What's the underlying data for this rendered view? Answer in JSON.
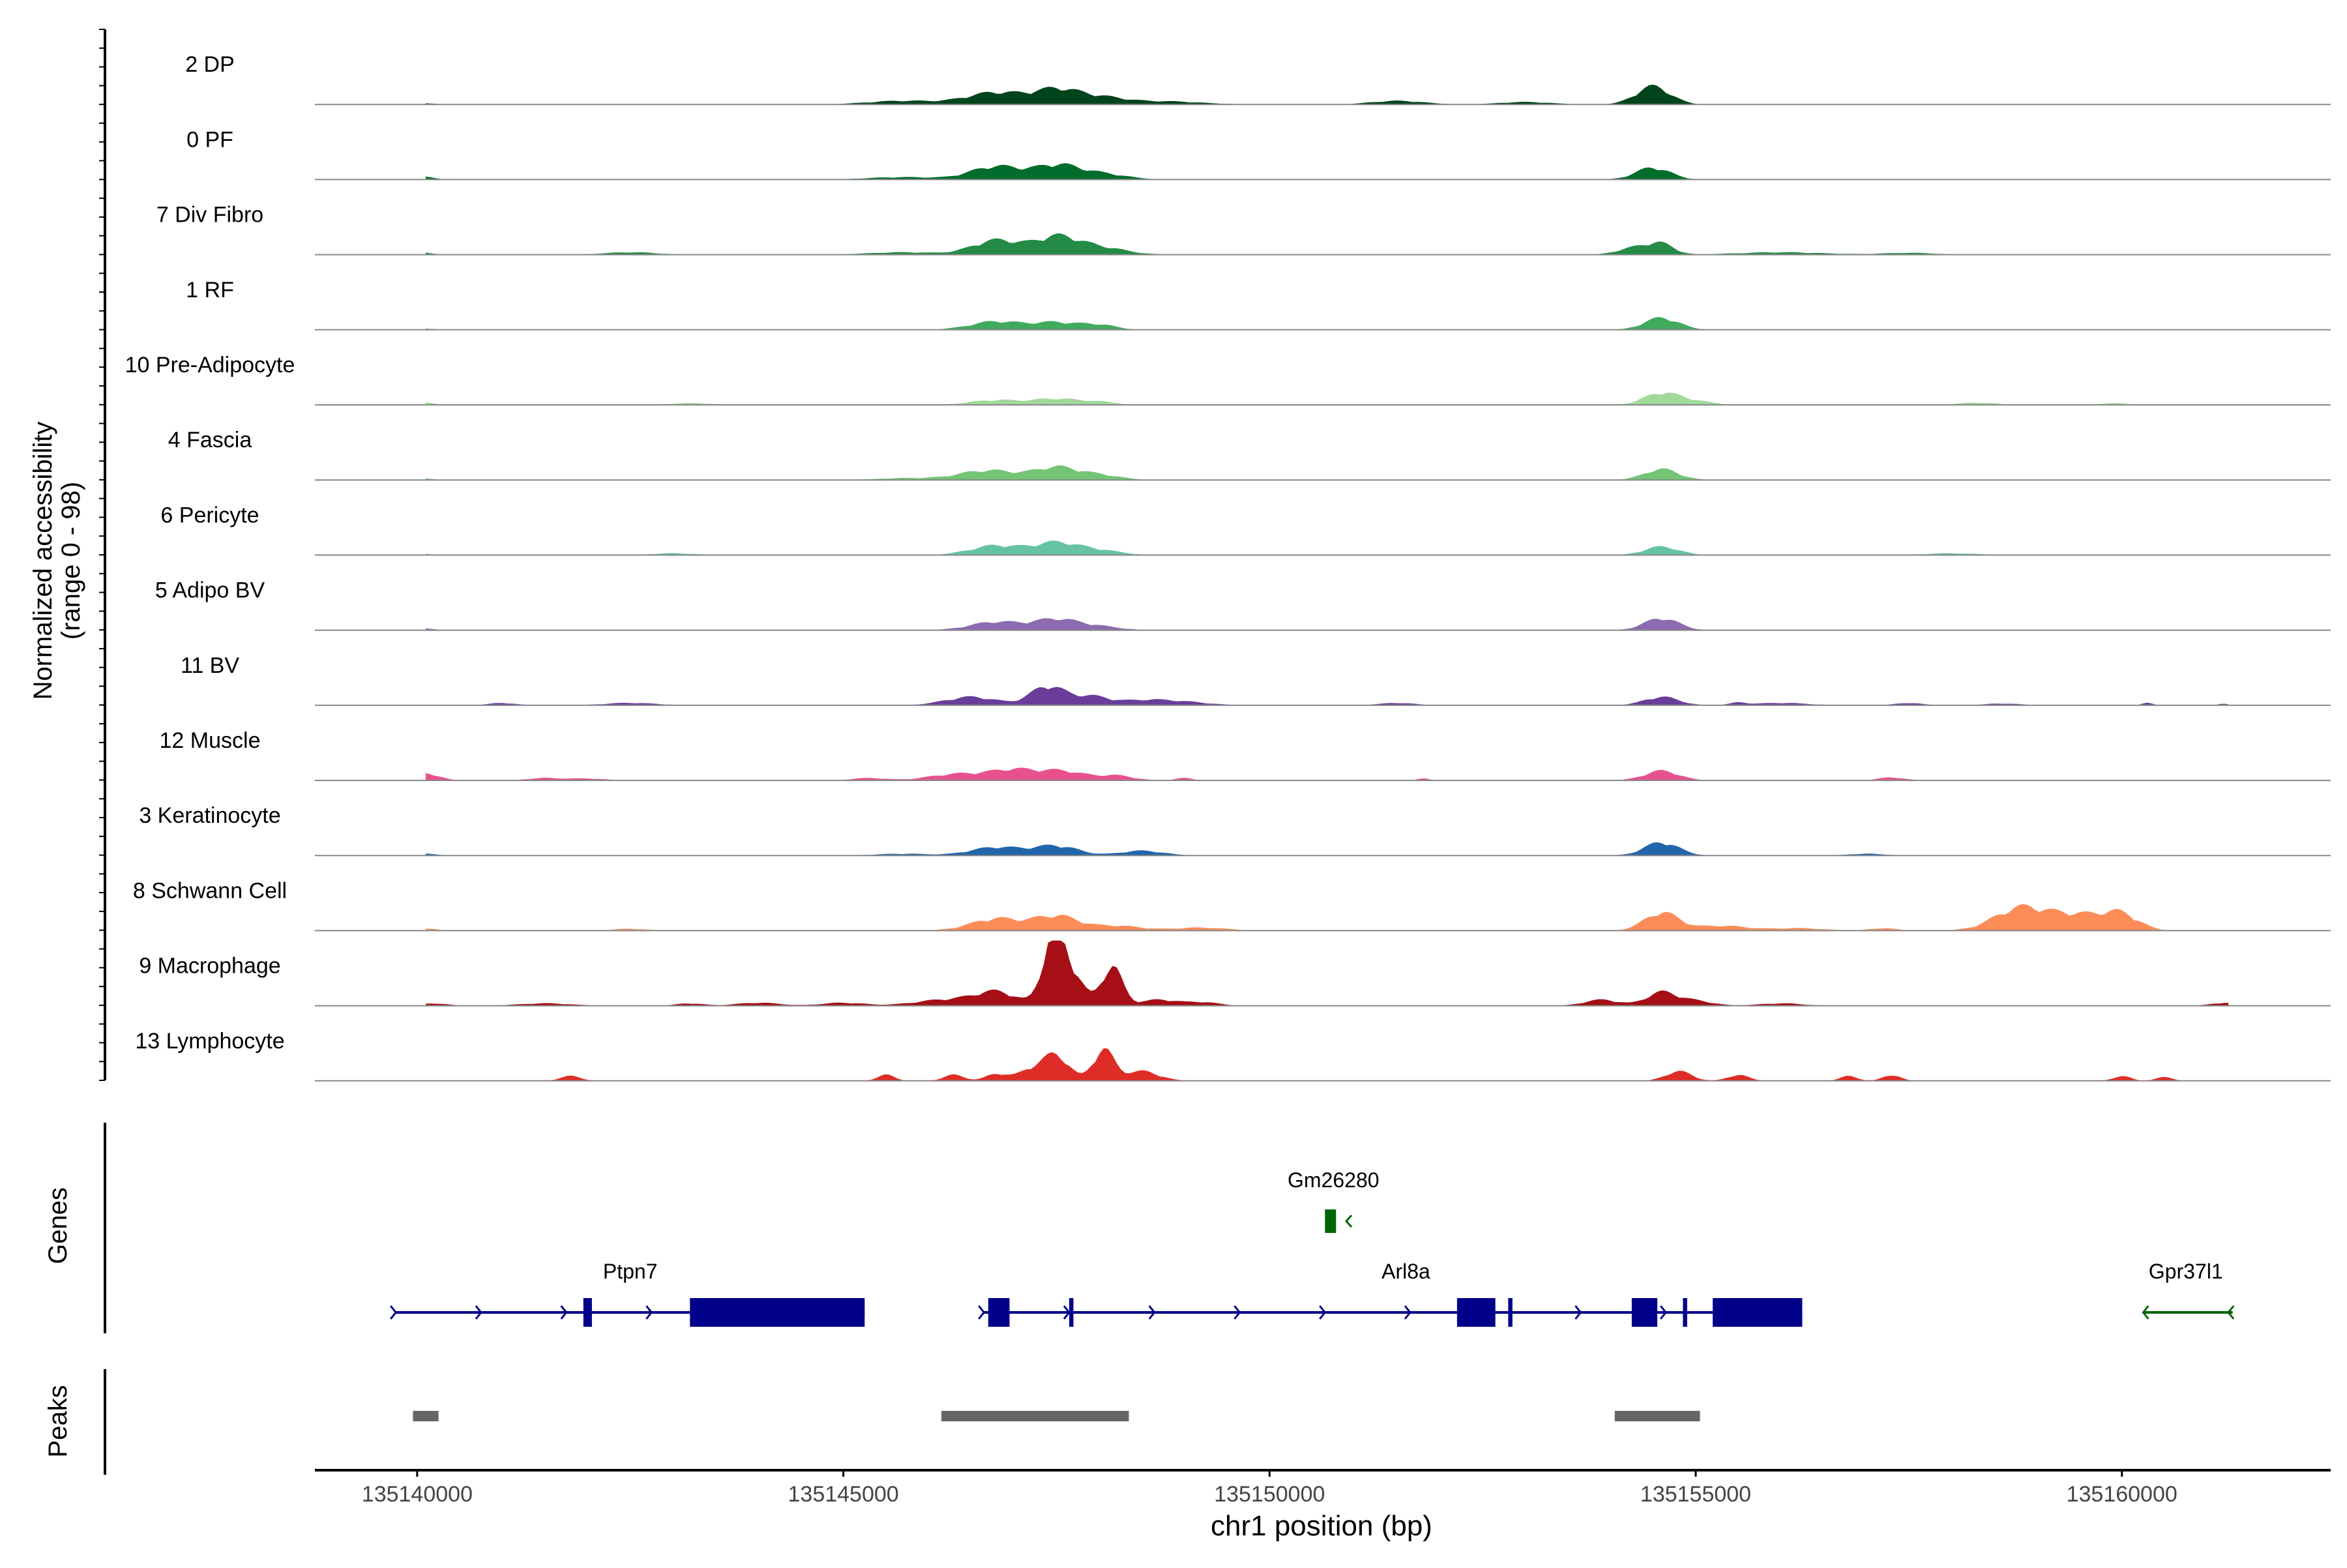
{
  "chart_data": {
    "type": "area",
    "title": "",
    "ylabel_line1": "Normalized accessibility",
    "ylabel_line2": "(range 0 - 98)",
    "ylim": [
      0,
      98
    ],
    "xlabel": "chr1 position (bp)",
    "xlim": [
      135138800,
      135162450
    ],
    "x_ticks": [
      135140000,
      135145000,
      135150000,
      135155000,
      135160000
    ],
    "x_tick_labels": [
      "135140000",
      "135145000",
      "135150000",
      "135155000",
      "135160000"
    ],
    "genes_label": "Genes",
    "peaks_label": "Peaks",
    "baseline_color": "#888888",
    "series": [
      {
        "name": "2 DP",
        "color": "#00441b",
        "peaks": [
          [
            135140000,
            3,
            150
          ],
          [
            135146800,
            20,
            350
          ],
          [
            135147500,
            22,
            250
          ],
          [
            135148000,
            12,
            300
          ],
          [
            135145700,
            6,
            400
          ],
          [
            135148800,
            5,
            400
          ],
          [
            135151500,
            6,
            300
          ],
          [
            135153000,
            4,
            300
          ],
          [
            135154500,
            30,
            200
          ]
        ]
      },
      {
        "name": "0 PF",
        "color": "#006d2c",
        "peaks": [
          [
            135140000,
            6,
            150
          ],
          [
            135146800,
            22,
            300
          ],
          [
            135147500,
            22,
            250
          ],
          [
            135148000,
            10,
            300
          ],
          [
            135145700,
            4,
            400
          ],
          [
            135154500,
            20,
            200
          ]
        ]
      },
      {
        "name": "7 Div Fibro",
        "color": "#238b45",
        "peaks": [
          [
            135140000,
            4,
            150
          ],
          [
            135142500,
            4,
            300
          ],
          [
            135145700,
            4,
            400
          ],
          [
            135146800,
            24,
            280
          ],
          [
            135147500,
            28,
            250
          ],
          [
            135148000,
            12,
            300
          ],
          [
            135154300,
            12,
            200
          ],
          [
            135154600,
            16,
            150
          ],
          [
            135156000,
            4,
            500
          ],
          [
            135157500,
            3,
            300
          ]
        ]
      },
      {
        "name": "1 RF",
        "color": "#41ab5d",
        "peaks": [
          [
            135140000,
            3,
            150
          ],
          [
            135146800,
            14,
            300
          ],
          [
            135147500,
            12,
            250
          ],
          [
            135148000,
            8,
            200
          ],
          [
            135154600,
            20,
            200
          ]
        ]
      },
      {
        "name": "10 Pre-Adipocyte",
        "color": "#a1d99b",
        "peaks": [
          [
            135140000,
            5,
            150
          ],
          [
            135143200,
            3,
            250
          ],
          [
            135146800,
            8,
            300
          ],
          [
            135147500,
            10,
            250
          ],
          [
            135148000,
            5,
            200
          ],
          [
            135154600,
            20,
            200
          ],
          [
            135155000,
            6,
            200
          ],
          [
            135158300,
            4,
            200
          ],
          [
            135159900,
            3,
            150
          ]
        ]
      },
      {
        "name": "4 Fascia",
        "color": "#74c476",
        "peaks": [
          [
            135140000,
            3,
            150
          ],
          [
            135146700,
            16,
            350
          ],
          [
            135147500,
            20,
            250
          ],
          [
            135148000,
            8,
            250
          ],
          [
            135154600,
            18,
            200
          ],
          [
            135145700,
            3,
            300
          ]
        ]
      },
      {
        "name": "6 Pericyte",
        "color": "#66c2a4",
        "peaks": [
          [
            135140000,
            3,
            150
          ],
          [
            135143000,
            3,
            250
          ],
          [
            135146800,
            16,
            300
          ],
          [
            135147500,
            20,
            250
          ],
          [
            135148000,
            8,
            250
          ],
          [
            135154600,
            14,
            200
          ],
          [
            135158000,
            3,
            300
          ]
        ]
      },
      {
        "name": "5 Adipo BV",
        "color": "#8c6bb1",
        "peaks": [
          [
            135140000,
            4,
            150
          ],
          [
            135146800,
            14,
            300
          ],
          [
            135147500,
            18,
            250
          ],
          [
            135148000,
            6,
            250
          ],
          [
            135154600,
            20,
            200
          ]
        ]
      },
      {
        "name": "11 BV",
        "color": "#6a3d9a",
        "peaks": [
          [
            135140000,
            5,
            60
          ],
          [
            135141000,
            4,
            150
          ],
          [
            135142500,
            4,
            300
          ],
          [
            135146500,
            14,
            300
          ],
          [
            135147400,
            32,
            200
          ],
          [
            135147900,
            14,
            200
          ],
          [
            135148500,
            8,
            300
          ],
          [
            135149000,
            5,
            300
          ],
          [
            135151500,
            4,
            200
          ],
          [
            135154600,
            14,
            200
          ],
          [
            135155500,
            4,
            100
          ],
          [
            135156000,
            4,
            300
          ],
          [
            135157500,
            4,
            150
          ],
          [
            135158600,
            3,
            200
          ],
          [
            135160300,
            4,
            60
          ],
          [
            135161200,
            3,
            60
          ]
        ]
      },
      {
        "name": "12 Muscle",
        "color": "#e7528e",
        "peaks": [
          [
            135140100,
            12,
            150
          ],
          [
            135141500,
            4,
            200
          ],
          [
            135142000,
            3,
            200
          ],
          [
            135145300,
            4,
            200
          ],
          [
            135146300,
            10,
            300
          ],
          [
            135147000,
            18,
            300
          ],
          [
            135147600,
            14,
            250
          ],
          [
            135148200,
            8,
            200
          ],
          [
            135149000,
            4,
            100
          ],
          [
            135151800,
            4,
            60
          ],
          [
            135154600,
            16,
            200
          ],
          [
            135157300,
            5,
            150
          ]
        ]
      },
      {
        "name": "3 Keratinocyte",
        "color": "#2166ac",
        "peaks": [
          [
            135140000,
            5,
            150
          ],
          [
            135146800,
            14,
            300
          ],
          [
            135147500,
            16,
            250
          ],
          [
            135148500,
            8,
            250
          ],
          [
            135145700,
            3,
            300
          ],
          [
            135154600,
            22,
            200
          ],
          [
            135157000,
            3,
            200
          ]
        ]
      },
      {
        "name": "8 Schwann Cell",
        "color": "#fc8d59",
        "peaks": [
          [
            135140100,
            3,
            150
          ],
          [
            135142500,
            3,
            200
          ],
          [
            135146800,
            20,
            300
          ],
          [
            135147500,
            24,
            250
          ],
          [
            135148200,
            8,
            300
          ],
          [
            135149200,
            5,
            300
          ],
          [
            135154600,
            30,
            200
          ],
          [
            135155300,
            8,
            300
          ],
          [
            135158800,
            36,
            300
          ],
          [
            135159500,
            26,
            350
          ],
          [
            135160000,
            22,
            200
          ],
          [
            135156200,
            4,
            300
          ],
          [
            135157200,
            4,
            150
          ]
        ]
      },
      {
        "name": "9 Macrophage",
        "color": "#a50f15",
        "peaks": [
          [
            135140200,
            4,
            150
          ],
          [
            135141500,
            4,
            300
          ],
          [
            135143200,
            4,
            150
          ],
          [
            135144000,
            5,
            250
          ],
          [
            135145000,
            5,
            250
          ],
          [
            135146200,
            10,
            350
          ],
          [
            135146800,
            22,
            250
          ],
          [
            135147450,
            98,
            120
          ],
          [
            135147650,
            60,
            150
          ],
          [
            135148150,
            66,
            120
          ],
          [
            135148700,
            10,
            200
          ],
          [
            135149200,
            6,
            200
          ],
          [
            135153900,
            10,
            200
          ],
          [
            135154600,
            22,
            180
          ],
          [
            135155000,
            8,
            200
          ],
          [
            135156000,
            4,
            250
          ],
          [
            135161200,
            5,
            150
          ]
        ]
      },
      {
        "name": "13 Lymphocyte",
        "color": "#de2d26",
        "peaks": [
          [
            135141800,
            8,
            120
          ],
          [
            135145500,
            10,
            100
          ],
          [
            135146300,
            10,
            120
          ],
          [
            135146800,
            12,
            120
          ],
          [
            135147200,
            18,
            150
          ],
          [
            135147500,
            42,
            150
          ],
          [
            135148050,
            52,
            120
          ],
          [
            135148500,
            16,
            200
          ],
          [
            135154800,
            16,
            150
          ],
          [
            135155500,
            10,
            120
          ],
          [
            135156800,
            8,
            100
          ],
          [
            135157300,
            10,
            100
          ],
          [
            135160000,
            8,
            100
          ],
          [
            135160500,
            6,
            100
          ]
        ]
      }
    ],
    "genes": [
      {
        "name": "Gm26280",
        "strand": "-",
        "color": "#006400",
        "start": 135150650,
        "end": 135150900,
        "row": 0,
        "label_pos": 135150750,
        "exons": [
          [
            135150650,
            135150780
          ]
        ]
      },
      {
        "name": "Ptpn7",
        "strand": "+",
        "color": "#00008b",
        "start": 135139750,
        "end": 135145250,
        "row": 1,
        "label_pos": 135142500,
        "exons": [
          [
            135141950,
            135142050
          ],
          [
            135143200,
            135145250
          ]
        ]
      },
      {
        "name": "Arl8a",
        "strand": "+",
        "color": "#00008b",
        "start": 135146650,
        "end": 135156250,
        "row": 1,
        "label_pos": 135151600,
        "exons": [
          [
            135146700,
            135146950
          ],
          [
            135147650,
            135147700
          ],
          [
            135152200,
            135152650
          ],
          [
            135152800,
            135152850
          ],
          [
            135154250,
            135154550
          ],
          [
            135154850,
            135154900
          ],
          [
            135155200,
            135156250
          ]
        ]
      },
      {
        "name": "Gpr37l1",
        "strand": "-",
        "color": "#006400",
        "start": 135160250,
        "end": 135161300,
        "row": 1,
        "label_pos": 135160750,
        "exons": []
      }
    ],
    "peak_regions": [
      [
        135139950,
        135140250
      ],
      [
        135146150,
        135148350
      ],
      [
        135154050,
        135155050
      ]
    ],
    "peak_color": "#666666"
  }
}
